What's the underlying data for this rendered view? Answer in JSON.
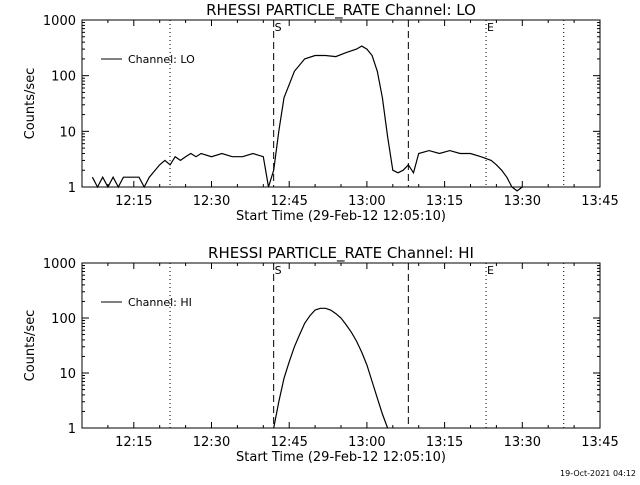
{
  "chart_data": [
    {
      "type": "line",
      "title": "RHESSI PARTICLE_RATE Channel: LO",
      "xlabel": "Start Time (29-Feb-12 12:05:10)",
      "ylabel": "Counts/sec",
      "yscale": "log",
      "ylim": [
        1,
        1000
      ],
      "xlim": [
        "12:05",
        "13:45"
      ],
      "x_ticks": [
        "12:15",
        "12:30",
        "12:45",
        "13:00",
        "13:15",
        "13:30",
        "13:45"
      ],
      "y_ticks": [
        "1",
        "10",
        "100",
        "1000"
      ],
      "legend": {
        "label": "Channel: LO",
        "placement": "top-left"
      },
      "markers": [
        {
          "time": "12:22",
          "style": "dotted",
          "label": ""
        },
        {
          "time": "12:42",
          "style": "dashed",
          "label": "S"
        },
        {
          "time": "13:08",
          "style": "dashed",
          "label": ""
        },
        {
          "time": "13:23",
          "style": "dotted",
          "label": "E"
        },
        {
          "time": "13:38",
          "style": "dotted",
          "label": ""
        }
      ],
      "series": [
        {
          "x": [
            "12:07",
            "12:08",
            "12:09",
            "12:10",
            "12:11",
            "12:12",
            "12:13",
            "12:14",
            "12:16",
            "12:17",
            "12:18",
            "12:20",
            "12:21",
            "12:22",
            "12:23",
            "12:24",
            "12:25",
            "12:26",
            "12:27",
            "12:28",
            "12:30",
            "12:32",
            "12:34",
            "12:36",
            "12:38",
            "12:40",
            "12:41",
            "12:42",
            "12:43",
            "12:44",
            "12:46",
            "12:48",
            "12:50",
            "12:52",
            "12:54",
            "12:56",
            "12:58",
            "12:59",
            "13:00",
            "13:01",
            "13:02",
            "13:03",
            "13:04",
            "13:05",
            "13:06",
            "13:07",
            "13:08",
            "13:09",
            "13:10",
            "13:12",
            "13:14",
            "13:16",
            "13:18",
            "13:20",
            "13:22",
            "13:24",
            "13:25",
            "13:26",
            "13:27",
            "13:28",
            "13:29",
            "13:30"
          ],
          "y": [
            1.5,
            1,
            1.5,
            1,
            1.5,
            1,
            1.5,
            1.5,
            1.5,
            1,
            1.5,
            2.5,
            3,
            2.5,
            3.5,
            3,
            3.5,
            4,
            3.5,
            4,
            3.5,
            4,
            3.5,
            3.5,
            4,
            3.5,
            1,
            2,
            10,
            40,
            120,
            200,
            230,
            230,
            220,
            260,
            300,
            340,
            300,
            230,
            120,
            40,
            8,
            2,
            1.8,
            2,
            2.5,
            1.8,
            4,
            4.5,
            4,
            4.5,
            4,
            4,
            3.5,
            3,
            2.5,
            2,
            1.5,
            1,
            0.8,
            1
          ]
        }
      ]
    },
    {
      "type": "line",
      "title": "RHESSI PARTICLE_RATE Channel: HI",
      "xlabel": "Start Time (29-Feb-12 12:05:10)",
      "ylabel": "Counts/sec",
      "yscale": "log",
      "ylim": [
        1,
        1000
      ],
      "xlim": [
        "12:05",
        "13:45"
      ],
      "x_ticks": [
        "12:15",
        "12:30",
        "12:45",
        "13:00",
        "13:15",
        "13:30",
        "13:45"
      ],
      "y_ticks": [
        "1",
        "10",
        "100",
        "1000"
      ],
      "legend": {
        "label": "Channel: HI",
        "placement": "top-left"
      },
      "markers": [
        {
          "time": "12:22",
          "style": "dotted",
          "label": ""
        },
        {
          "time": "12:42",
          "style": "dashed",
          "label": "S"
        },
        {
          "time": "13:08",
          "style": "dashed",
          "label": ""
        },
        {
          "time": "13:23",
          "style": "dotted",
          "label": "E"
        },
        {
          "time": "13:38",
          "style": "dotted",
          "label": ""
        }
      ],
      "series": [
        {
          "x": [
            "12:42",
            "12:43",
            "12:44",
            "12:45",
            "12:46",
            "12:47",
            "12:48",
            "12:49",
            "12:50",
            "12:51",
            "12:52",
            "12:53",
            "12:54",
            "12:55",
            "12:56",
            "12:57",
            "12:58",
            "12:59",
            "13:00",
            "13:01",
            "13:02",
            "13:03",
            "13:04"
          ],
          "y": [
            1,
            3,
            8,
            16,
            30,
            50,
            80,
            110,
            140,
            150,
            150,
            140,
            120,
            100,
            75,
            55,
            38,
            24,
            14,
            7,
            3.5,
            1.8,
            1
          ]
        }
      ]
    }
  ],
  "footer": {
    "timestamp": "19-Oct-2021 04:12"
  }
}
